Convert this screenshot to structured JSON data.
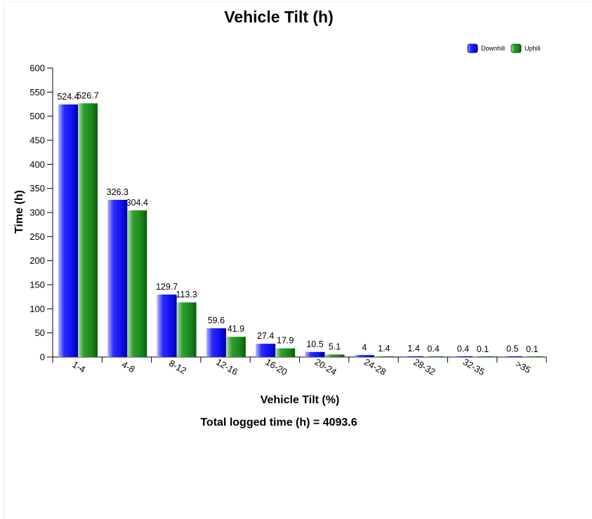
{
  "chart_data": {
    "type": "bar",
    "title": "Vehicle Tilt (h)",
    "xlabel": "Vehicle Tilt (%)",
    "ylabel": "Time (h)",
    "footer": "Total logged time (h) = 4093.6",
    "categories": [
      "1-4",
      "4-8",
      "8-12",
      "12-16",
      "16-20",
      "20-24",
      "24-28",
      "28-32",
      "32-35",
      ">35"
    ],
    "series": [
      {
        "name": "Downhill",
        "color": "#1a1aff",
        "values": [
          524.4,
          326.3,
          129.7,
          59.6,
          27.4,
          10.5,
          4,
          1.4,
          0.4,
          0.5
        ]
      },
      {
        "name": "Uphill",
        "color": "#1f8f1f",
        "values": [
          526.7,
          304.4,
          113.3,
          41.9,
          17.9,
          5.1,
          1.4,
          0.4,
          0.1,
          0.1
        ]
      }
    ],
    "ylim": [
      0,
      600
    ],
    "yticks": [
      0,
      50,
      100,
      150,
      200,
      250,
      300,
      350,
      400,
      450,
      500,
      550,
      600
    ],
    "grid": false,
    "legend_position": "top-right"
  }
}
